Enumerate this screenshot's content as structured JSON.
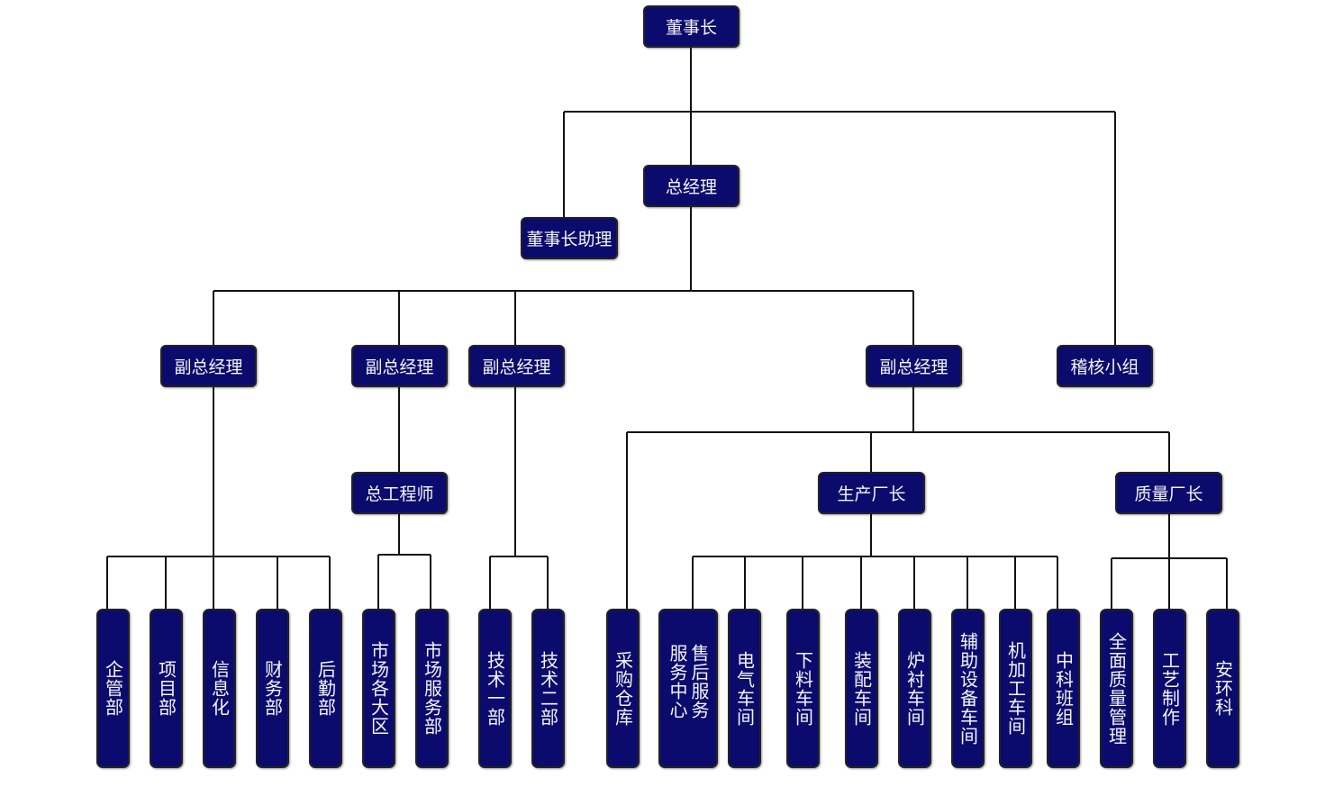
{
  "colors": {
    "box_fill": "#0b0b6e",
    "box_text": "#f4f4f4",
    "line": "#111111"
  },
  "nodes": {
    "chairman": "董事长",
    "gm": "总经理",
    "chairman_assistant": "董事长助理",
    "vgm1": "副总经理",
    "vgm2": "副总经理",
    "vgm3": "副总经理",
    "vgm4": "副总经理",
    "audit": "稽核小组",
    "chief_engineer": "总工程师",
    "production_director": "生产厂长",
    "quality_director": "质量厂长",
    "d1": "企管部",
    "d2": "项目部",
    "d3": "信息化",
    "d4": "财务部",
    "d5": "后勤部",
    "d6": "市场各大区",
    "d7": "市场服务部",
    "d8": "技术一部",
    "d9": "技术二部",
    "d10": "采购仓库",
    "d11": "售后服务服务中心",
    "d12": "电气车间",
    "d13": "下料车间",
    "d14": "装配车间",
    "d15": "炉衬车间",
    "d16": "辅助设备车间",
    "d17": "机加工车间",
    "d18": "中科班组",
    "d19": "全面质量管理",
    "d20": "工艺制作",
    "d21": "安环科"
  }
}
